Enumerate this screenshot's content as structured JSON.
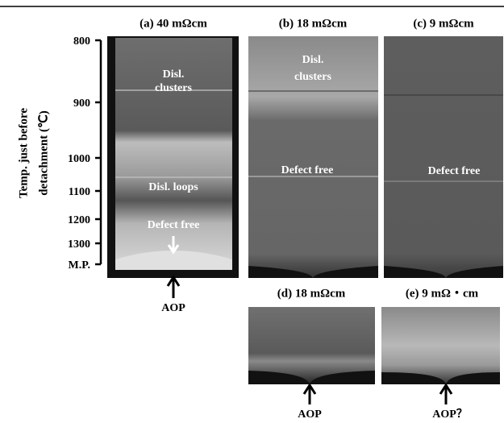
{
  "axis": {
    "label_lines": [
      "Temp. just before",
      "detachment (℃)"
    ],
    "ticks": [
      "800",
      "900",
      "1000",
      "1100",
      "1200",
      "1300",
      "M.P."
    ]
  },
  "panels": [
    {
      "title": "(a) 40 mΩcm",
      "annotations": [
        "Disl.",
        "clusters",
        "Disl. loops",
        "Defect free"
      ],
      "aop": "AOP"
    },
    {
      "title": "(b) 18 mΩcm",
      "annotations": [
        "Disl.",
        "clusters",
        "Defect free"
      ]
    },
    {
      "title": "(c) 9 mΩcm",
      "annotations": [
        "Defect free"
      ]
    },
    {
      "title": "(d) 18 mΩcm",
      "aop": "AOP"
    },
    {
      "title": "(e) 9 mΩ・cm",
      "aop": "AOP？"
    }
  ]
}
